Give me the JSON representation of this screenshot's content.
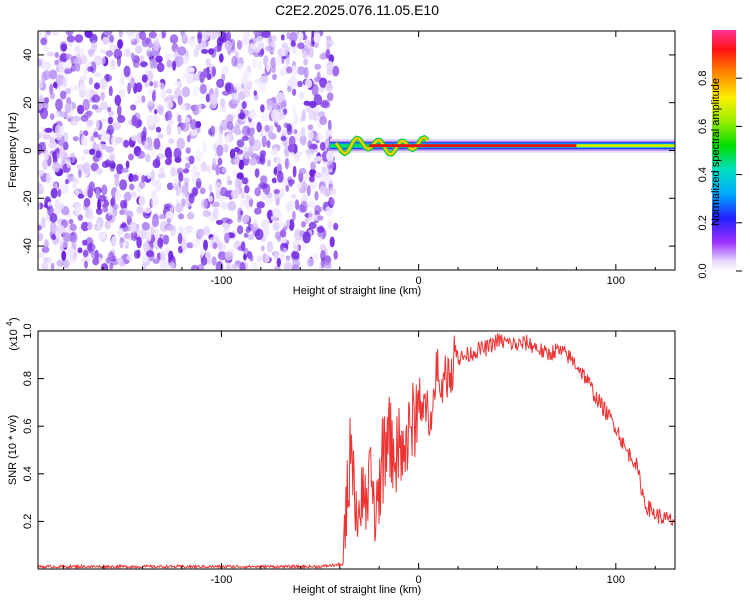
{
  "chart_data": [
    {
      "type": "heatmap",
      "title": "C2E2.2025.076.11.05.E10",
      "xlabel": "Height of straight line (km)",
      "ylabel": "Frequency (Hz)",
      "xlim": [
        -193,
        130
      ],
      "ylim": [
        -50,
        50
      ],
      "xticks": [
        -100,
        0,
        100
      ],
      "xtick_labels": [
        "-100",
        "0",
        "100"
      ],
      "yticks": [
        -40,
        -20,
        0,
        20,
        40
      ],
      "ytick_labels": [
        "-40",
        "-20",
        "0",
        "20",
        "40"
      ],
      "noise_region_x": [
        -193,
        -45
      ],
      "signal_region_x": [
        -45,
        130
      ],
      "signal_frequency_hz": 2,
      "colorbar": {
        "label": "Normalized spectral amplitude",
        "range": [
          0,
          1
        ],
        "ticks": [
          0.0,
          0.2,
          0.4,
          0.6,
          0.8
        ],
        "tick_labels": [
          "0.0",
          "0.2",
          "0.4",
          "0.6",
          "0.8"
        ]
      }
    },
    {
      "type": "line",
      "xlabel": "Height of straight line (km)",
      "ylabel": "SNR (10 * v/v)",
      "scale_label": "(x10",
      "scale_exponent": "4",
      "xlim": [
        -193,
        130
      ],
      "ylim": [
        0,
        1.0
      ],
      "xticks": [
        -100,
        0,
        100
      ],
      "xtick_labels": [
        "-100",
        "0",
        "100"
      ],
      "yticks": [
        0.2,
        0.4,
        0.6,
        0.8,
        1.0
      ],
      "ytick_labels": [
        "0.2",
        "0.4",
        "0.6",
        "0.8",
        "1.0"
      ],
      "line_color": "#ee3333",
      "series": [
        {
          "x": [
            -193,
            -150,
            -100,
            -50,
            -38,
            -36,
            -34,
            -32,
            -30,
            -28,
            -26,
            -24,
            -22,
            -20,
            -18,
            -15,
            -10,
            -5,
            0,
            5,
            10,
            15,
            20,
            25,
            30,
            35,
            40,
            45,
            50,
            55,
            60,
            65,
            70,
            75,
            80,
            85,
            90,
            95,
            100,
            105,
            110,
            115,
            120,
            125,
            130
          ],
          "y": [
            0.01,
            0.01,
            0.01,
            0.01,
            0.02,
            0.35,
            0.55,
            0.3,
            0.1,
            0.45,
            0.25,
            0.4,
            0.2,
            0.35,
            0.45,
            0.55,
            0.45,
            0.55,
            0.7,
            0.65,
            0.75,
            0.82,
            0.88,
            0.9,
            0.92,
            0.93,
            0.96,
            0.95,
            0.94,
            0.95,
            0.93,
            0.9,
            0.92,
            0.9,
            0.86,
            0.8,
            0.72,
            0.66,
            0.6,
            0.5,
            0.45,
            0.27,
            0.23,
            0.21,
            0.2
          ]
        }
      ]
    }
  ],
  "colors": {
    "line": "#ee3333",
    "noise_light": "#d7c3f7",
    "noise_dark": "#6a22e0"
  }
}
